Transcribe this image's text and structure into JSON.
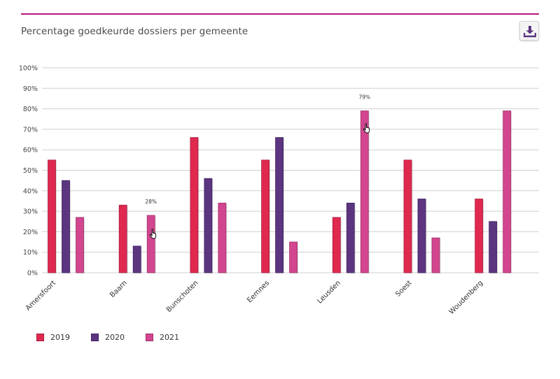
{
  "header": {
    "title": "Percentage goedkeurde dossiers per gemeente",
    "download_icon": "download-icon"
  },
  "colors": {
    "accent_rule": "#b5157f",
    "series": [
      "#e0294f",
      "#5c3580",
      "#d2468f"
    ],
    "series_dark": [
      "#a81c3c",
      "#3f2160",
      "#9e2f69"
    ],
    "grid": "#cfcfcf"
  },
  "chart_data": {
    "type": "bar",
    "title": "Percentage goedkeurde dossiers per gemeente",
    "xlabel": "",
    "ylabel": "",
    "ylim": [
      0,
      100
    ],
    "grid": true,
    "legend_position": "bottom-left",
    "yticks": [
      "0%",
      "10%",
      "20%",
      "30%",
      "40%",
      "50%",
      "60%",
      "70%",
      "80%",
      "90%",
      "100%"
    ],
    "categories": [
      "Amersfoort",
      "Baarn",
      "Bunschoten",
      "Eemnes",
      "Leusden",
      "Soest",
      "Woudenberg"
    ],
    "series": [
      {
        "name": "2019",
        "values": [
          55,
          33,
          66,
          55,
          27,
          55,
          36
        ]
      },
      {
        "name": "2020",
        "values": [
          45,
          13,
          46,
          66,
          34,
          36,
          25
        ]
      },
      {
        "name": "2021",
        "values": [
          27,
          28,
          34,
          15,
          79,
          17,
          79
        ]
      }
    ],
    "data_labels": [
      {
        "category": "Baarn",
        "series": "2021",
        "text": "28%"
      },
      {
        "category": "Leusden",
        "series": "2021",
        "text": "79%"
      }
    ]
  }
}
